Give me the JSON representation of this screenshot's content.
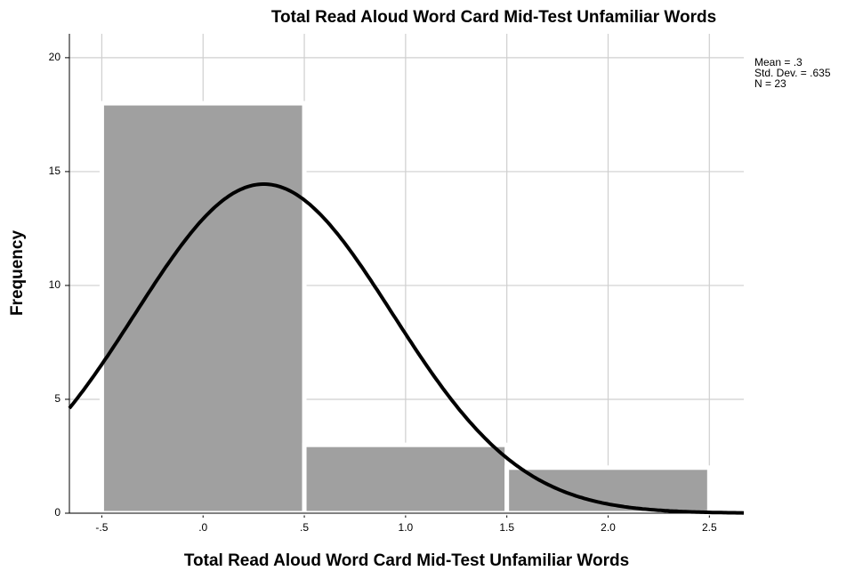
{
  "chart_data": {
    "type": "histogram",
    "title": "Total Read Aloud Word Card Mid-Test Unfamiliar Words",
    "x_label": "Total Read Aloud Word Card Mid-Test Unfamiliar Words",
    "y_label": "Frequency",
    "bins": [
      -0.5,
      0.5,
      1.5,
      2.5
    ],
    "values": [
      18,
      3,
      2
    ],
    "color": "#a0a0a0",
    "curve_color": "#000000",
    "stats": [
      {
        "label": "Mean = .3",
        "value": 0.3
      },
      {
        "label": "Std. Dev. = .635",
        "value": 0.635
      },
      {
        "label": "N = 23",
        "value": 23
      }
    ],
    "xlim": [
      -0.66,
      2.67
    ],
    "ylim": [
      0,
      21.05
    ],
    "xticks": [
      {
        "value": -0.5,
        "label": "-.5"
      },
      {
        "value": 0,
        "label": ".0"
      },
      {
        "value": 0.5,
        "label": ".5"
      },
      {
        "value": 1,
        "label": "1.0"
      },
      {
        "value": 1.5,
        "label": "1.5"
      },
      {
        "value": 2,
        "label": "2.0"
      },
      {
        "value": 2.5,
        "label": "2.5"
      }
    ],
    "yticks": [
      0,
      5,
      10,
      15,
      20
    ],
    "grid": true
  }
}
